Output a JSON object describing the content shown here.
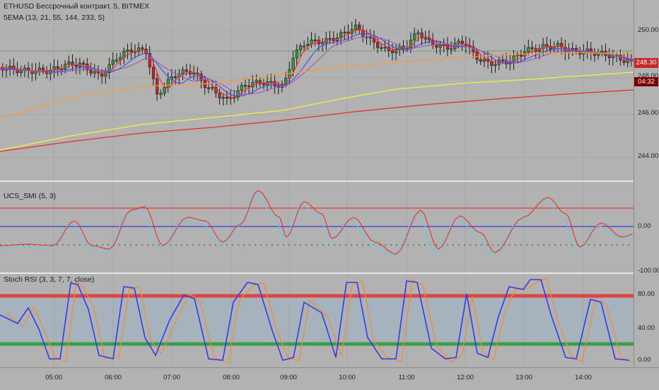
{
  "main": {
    "symbol_title": "ETHUSD Бессрочный контракт, 5, BITMEX",
    "indicator_title": "5EMA (13, 21, 55, 144, 233, 5)",
    "price_ticks": [
      "250.00",
      "248.00",
      "246.00",
      "244.00"
    ],
    "last_price": "248.30",
    "countdown": "04:32",
    "ema_colors": [
      "#ff2a2a",
      "#3d4df0",
      "#9b59b6",
      "#ff9a3c",
      "#f5f03c",
      "#e0302a"
    ]
  },
  "smi": {
    "title": "UCS_SMI (5, 3)",
    "ticks": [
      "0.00",
      "-100.00"
    ]
  },
  "rsi": {
    "title": "Stoch RSI (3, 3, 7, 7, close)",
    "ticks": [
      "80.00",
      "40.00",
      "0.00"
    ]
  },
  "time_axis": {
    "labels": [
      "05:00",
      "06:00",
      "07:00",
      "08:00",
      "09:00",
      "10:00",
      "11:00",
      "12:00",
      "13:00",
      "14:00"
    ]
  },
  "colors": {
    "background": "#b2b2b2",
    "up_candle": "#2e9e3a",
    "down_candle": "#c62828",
    "stoch_k": "#3a3ae0",
    "stoch_d": "#f08c3c",
    "smi_line": "#e53935",
    "smi_signal": "#6cc6e8"
  }
}
